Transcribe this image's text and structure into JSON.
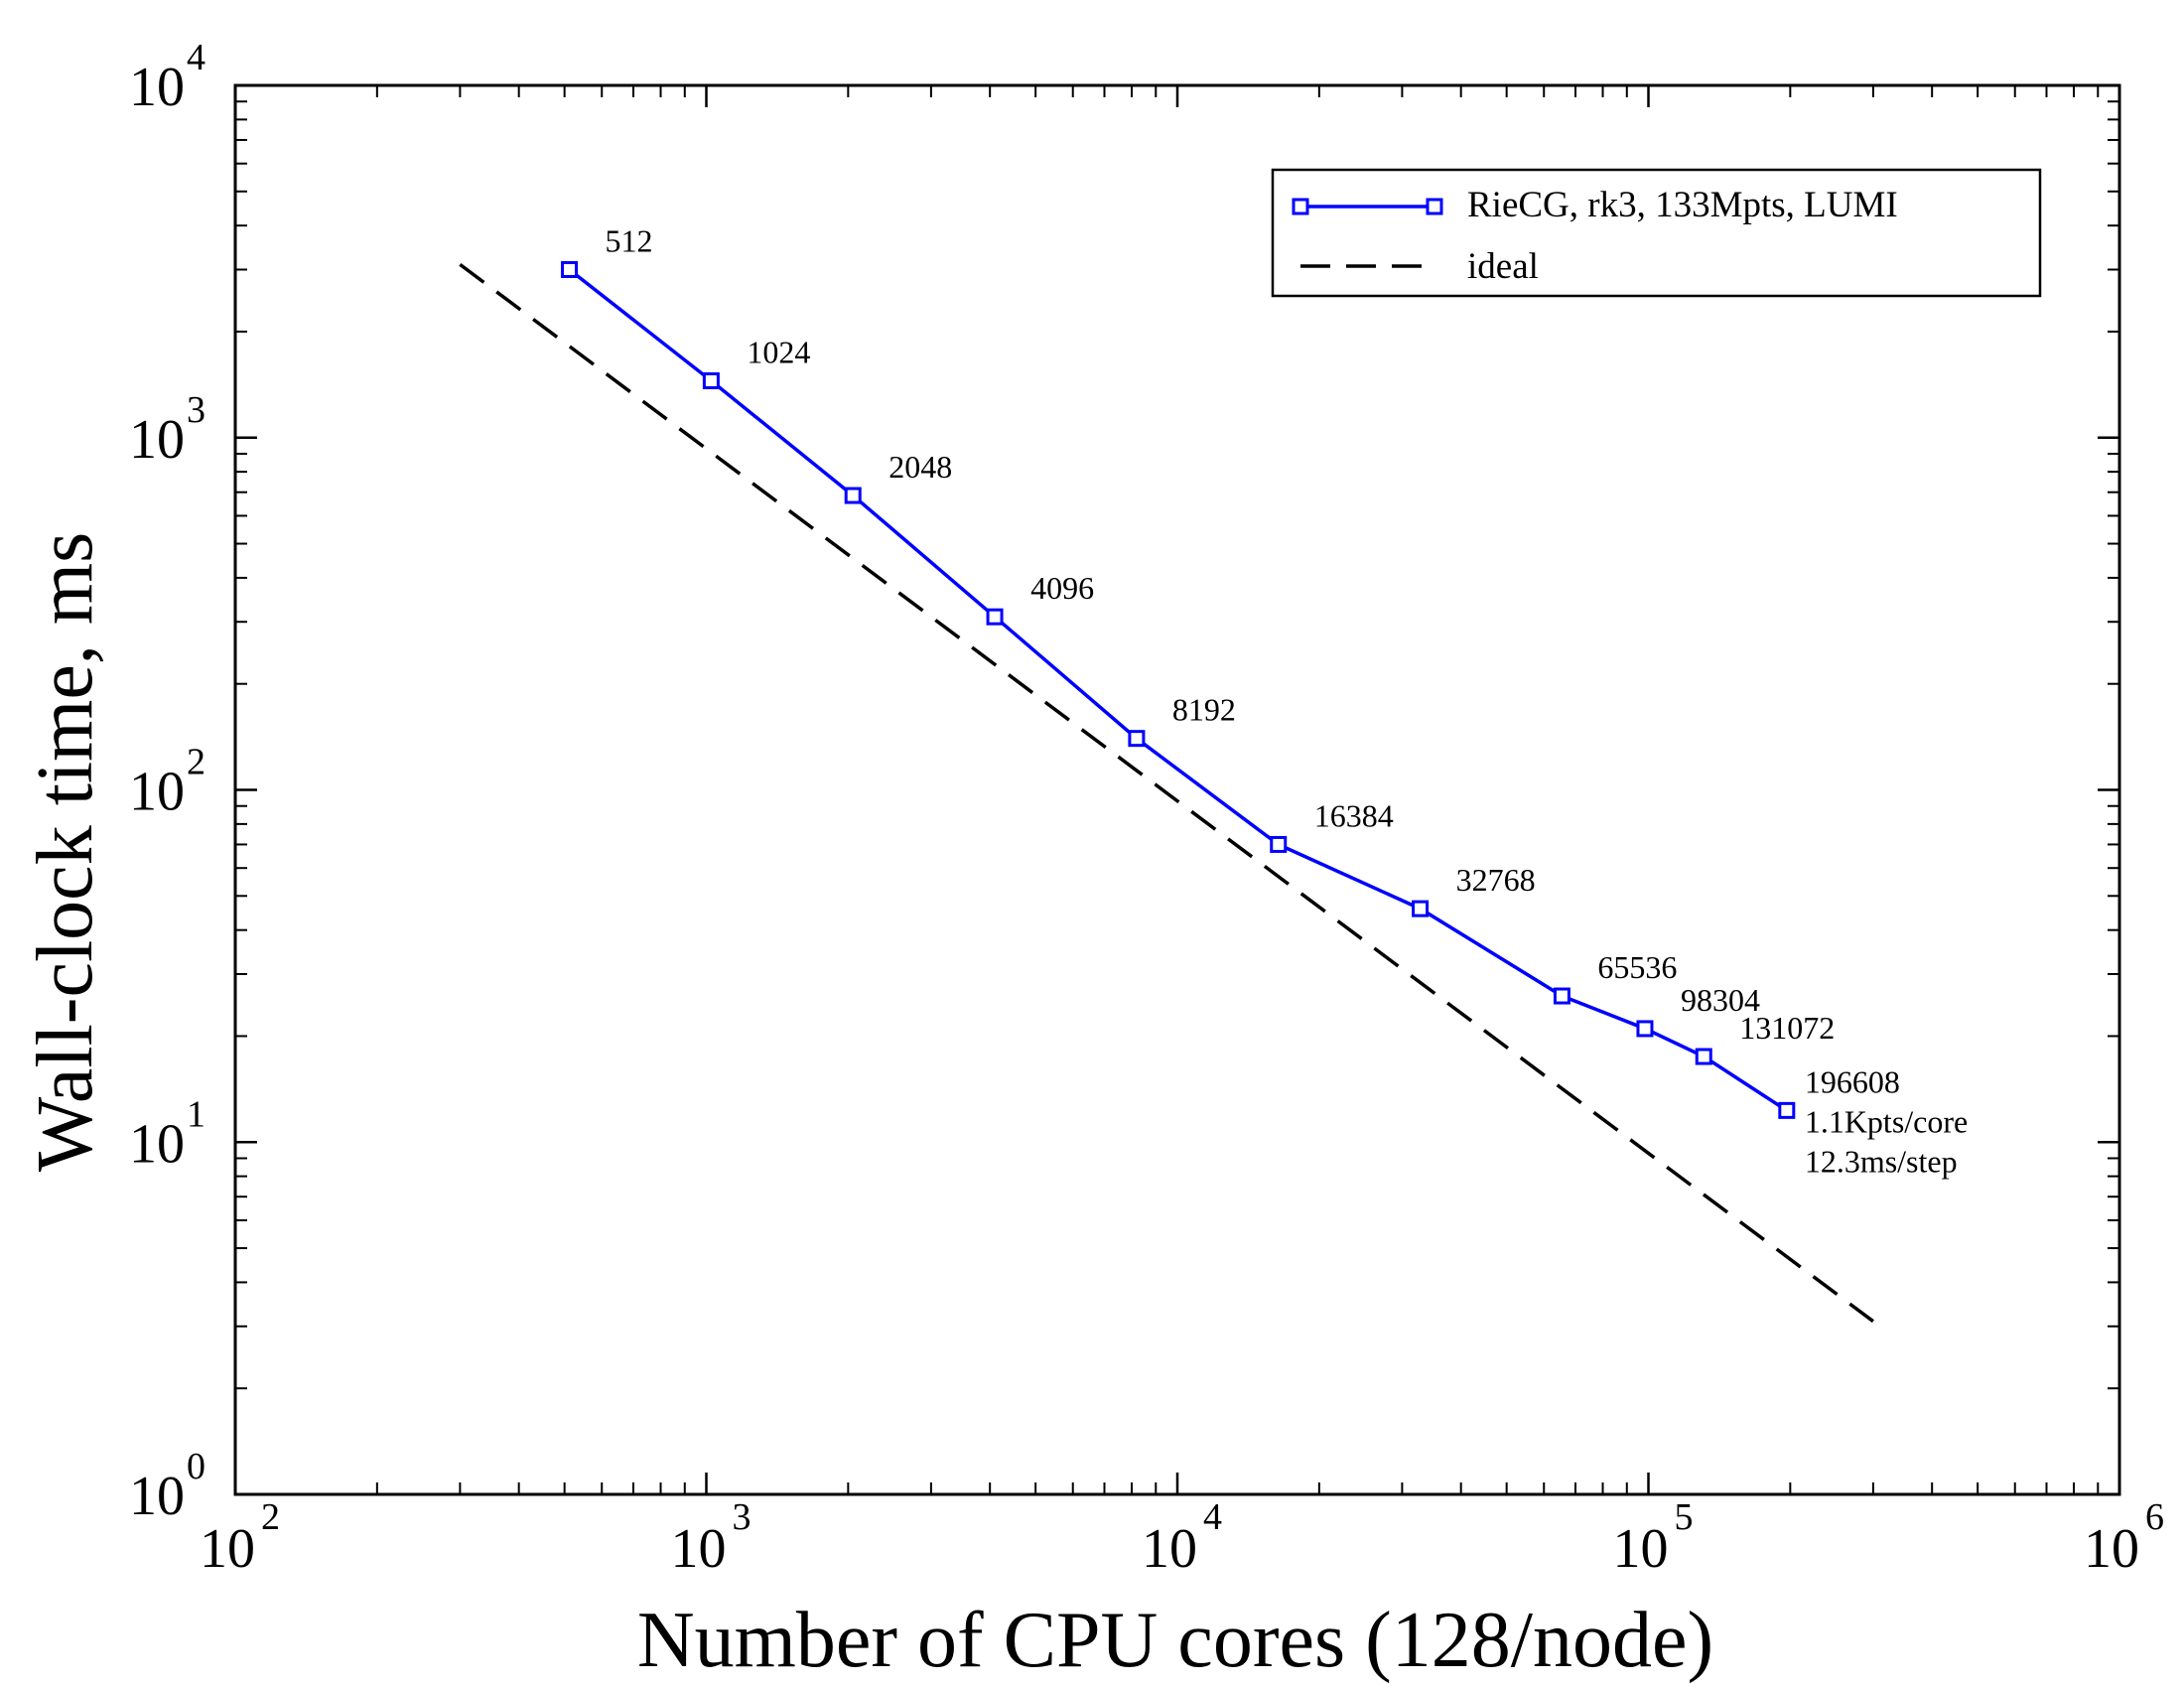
{
  "chart_data": {
    "type": "line",
    "xlabel": "Number of CPU cores (128/node)",
    "ylabel": "Wall-clock time, ms",
    "xscale": "log",
    "yscale": "log",
    "xlim": [
      100,
      1000000
    ],
    "ylim": [
      1,
      10000
    ],
    "grid": false,
    "legend_position": "top-right",
    "x_ticks": [
      {
        "base": "10",
        "exp": "2"
      },
      {
        "base": "10",
        "exp": "3"
      },
      {
        "base": "10",
        "exp": "4"
      },
      {
        "base": "10",
        "exp": "5"
      },
      {
        "base": "10",
        "exp": "6"
      }
    ],
    "y_ticks": [
      {
        "base": "10",
        "exp": "0"
      },
      {
        "base": "10",
        "exp": "1"
      },
      {
        "base": "10",
        "exp": "2"
      },
      {
        "base": "10",
        "exp": "3"
      },
      {
        "base": "10",
        "exp": "4"
      }
    ],
    "series": [
      {
        "name": "RieCG, rk3, 133Mpts, LUMI",
        "color": "#0000ff",
        "style": "solid",
        "marker": "square",
        "x": [
          512,
          1024,
          2048,
          4096,
          8192,
          16384,
          32768,
          65536,
          98304,
          131072,
          196608
        ],
        "y": [
          3000,
          1450,
          685,
          310,
          140,
          70,
          46,
          26,
          21,
          17.5,
          12.3
        ],
        "point_labels": [
          [
            "512"
          ],
          [
            "1024"
          ],
          [
            "2048"
          ],
          [
            "4096"
          ],
          [
            "8192"
          ],
          [
            "16384"
          ],
          [
            "32768"
          ],
          [
            "65536"
          ],
          [
            "98304"
          ],
          [
            "131072"
          ],
          [
            "196608",
            "1.1Kpts/core",
            "12.3ms/step"
          ]
        ]
      },
      {
        "name": "ideal",
        "color": "#000000",
        "style": "dashed",
        "marker": "none",
        "x": [
          300,
          300000
        ],
        "y": [
          3100,
          3.1
        ]
      }
    ]
  }
}
